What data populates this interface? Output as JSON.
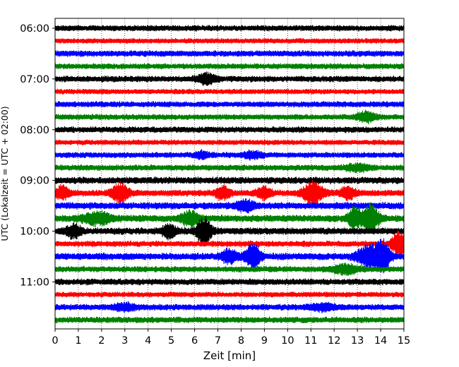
{
  "chart_data": {
    "type": "line",
    "title": "",
    "xlabel": "Zeit  [min]",
    "ylabel": "UTC (Lokalzeit = UTC + 02:00)",
    "xlim": [
      0,
      15
    ],
    "x_ticks": [
      0,
      1,
      2,
      3,
      4,
      5,
      6,
      7,
      8,
      9,
      10,
      11,
      12,
      13,
      14,
      15
    ],
    "x_tick_labels": [
      "0",
      "1",
      "2",
      "3",
      "4",
      "5",
      "6",
      "7",
      "8",
      "9",
      "10",
      "11",
      "12",
      "13",
      "14",
      "15"
    ],
    "y_tick_labels": [
      "06:00",
      "07:00",
      "08:00",
      "09:00",
      "10:00",
      "11:00"
    ],
    "row_interval_min": 15,
    "first_row_time": "06:00",
    "row_colors": [
      "#000000",
      "#ff0000",
      "#0000ff",
      "#008000"
    ],
    "grid": {
      "x": true,
      "style": "dotted",
      "y": false
    },
    "legend": "none",
    "series": [
      {
        "start": "06:00",
        "base_amp": 0.25,
        "bursts": []
      },
      {
        "start": "06:15",
        "base_amp": 0.22,
        "bursts": []
      },
      {
        "start": "06:30",
        "base_amp": 0.26,
        "bursts": []
      },
      {
        "start": "06:45",
        "base_amp": 0.24,
        "bursts": []
      },
      {
        "start": "07:00",
        "base_amp": 0.26,
        "bursts": [
          {
            "t": 6.5,
            "amp": 0.45,
            "w": 0.4
          }
        ]
      },
      {
        "start": "07:15",
        "base_amp": 0.22,
        "bursts": []
      },
      {
        "start": "07:30",
        "base_amp": 0.25,
        "bursts": []
      },
      {
        "start": "07:45",
        "base_amp": 0.24,
        "bursts": [
          {
            "t": 13.4,
            "amp": 0.45,
            "w": 0.4
          }
        ]
      },
      {
        "start": "08:00",
        "base_amp": 0.26,
        "bursts": []
      },
      {
        "start": "08:15",
        "base_amp": 0.22,
        "bursts": []
      },
      {
        "start": "08:30",
        "base_amp": 0.24,
        "bursts": [
          {
            "t": 6.3,
            "amp": 0.3,
            "w": 0.3
          },
          {
            "t": 8.5,
            "amp": 0.3,
            "w": 0.4
          }
        ]
      },
      {
        "start": "08:45",
        "base_amp": 0.25,
        "bursts": [
          {
            "t": 13.0,
            "amp": 0.3,
            "w": 0.5
          }
        ]
      },
      {
        "start": "09:00",
        "base_amp": 0.3,
        "bursts": []
      },
      {
        "start": "09:15",
        "base_amp": 0.28,
        "bursts": [
          {
            "t": 0.3,
            "amp": 0.6,
            "w": 0.3
          },
          {
            "t": 2.8,
            "amp": 0.9,
            "w": 0.35
          },
          {
            "t": 7.2,
            "amp": 0.6,
            "w": 0.3
          },
          {
            "t": 9.0,
            "amp": 0.55,
            "w": 0.3
          },
          {
            "t": 11.1,
            "amp": 1.1,
            "w": 0.4
          },
          {
            "t": 12.6,
            "amp": 0.6,
            "w": 0.3
          }
        ]
      },
      {
        "start": "09:30",
        "base_amp": 0.3,
        "bursts": [
          {
            "t": 8.2,
            "amp": 0.45,
            "w": 0.4
          }
        ]
      },
      {
        "start": "09:45",
        "base_amp": 0.3,
        "bursts": [
          {
            "t": 1.8,
            "amp": 0.55,
            "w": 0.6
          },
          {
            "t": 5.8,
            "amp": 0.6,
            "w": 0.4
          },
          {
            "t": 12.9,
            "amp": 1.0,
            "w": 0.3
          },
          {
            "t": 13.6,
            "amp": 1.4,
            "w": 0.3
          }
        ]
      },
      {
        "start": "10:00",
        "base_amp": 0.3,
        "bursts": [
          {
            "t": 0.8,
            "amp": 0.6,
            "w": 0.3
          },
          {
            "t": 4.9,
            "amp": 0.6,
            "w": 0.3
          },
          {
            "t": 6.4,
            "amp": 1.3,
            "w": 0.3
          }
        ]
      },
      {
        "start": "10:15",
        "base_amp": 0.25,
        "bursts": [
          {
            "t": 14.8,
            "amp": 1.2,
            "w": 0.3
          }
        ]
      },
      {
        "start": "10:30",
        "base_amp": 0.3,
        "bursts": [
          {
            "t": 7.5,
            "amp": 0.6,
            "w": 0.35
          },
          {
            "t": 8.5,
            "amp": 1.2,
            "w": 0.3
          },
          {
            "t": 13.5,
            "amp": 1.0,
            "w": 0.5
          },
          {
            "t": 14.1,
            "amp": 1.4,
            "w": 0.3
          }
        ]
      },
      {
        "start": "10:45",
        "base_amp": 0.25,
        "bursts": [
          {
            "t": 12.5,
            "amp": 0.4,
            "w": 0.6
          }
        ]
      },
      {
        "start": "11:00",
        "base_amp": 0.27,
        "bursts": []
      },
      {
        "start": "11:15",
        "base_amp": 0.22,
        "bursts": []
      },
      {
        "start": "11:30",
        "base_amp": 0.26,
        "bursts": [
          {
            "t": 3.0,
            "amp": 0.3,
            "w": 0.5
          },
          {
            "t": 11.5,
            "amp": 0.3,
            "w": 0.5
          }
        ]
      },
      {
        "start": "11:45",
        "base_amp": 0.26,
        "bursts": []
      }
    ]
  }
}
